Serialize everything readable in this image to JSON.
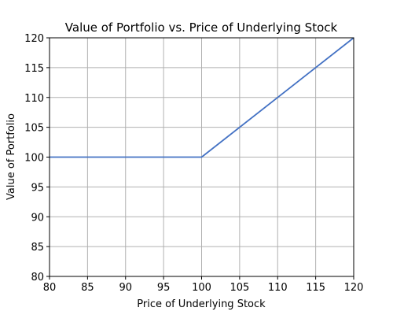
{
  "chart_data": {
    "type": "line",
    "title": "Value of Portfolio vs. Price of Underlying Stock",
    "xlabel": "Price of Underlying Stock",
    "ylabel": "Value of Portfolio",
    "xlim": [
      80,
      120
    ],
    "ylim": [
      80,
      120
    ],
    "xticks": [
      80,
      85,
      90,
      95,
      100,
      105,
      110,
      115,
      120
    ],
    "yticks": [
      80,
      85,
      90,
      95,
      100,
      105,
      110,
      115,
      120
    ],
    "grid": true,
    "series": [
      {
        "color": "#4472c4",
        "x": [
          80,
          100,
          120
        ],
        "y": [
          100,
          100,
          120
        ]
      }
    ]
  }
}
